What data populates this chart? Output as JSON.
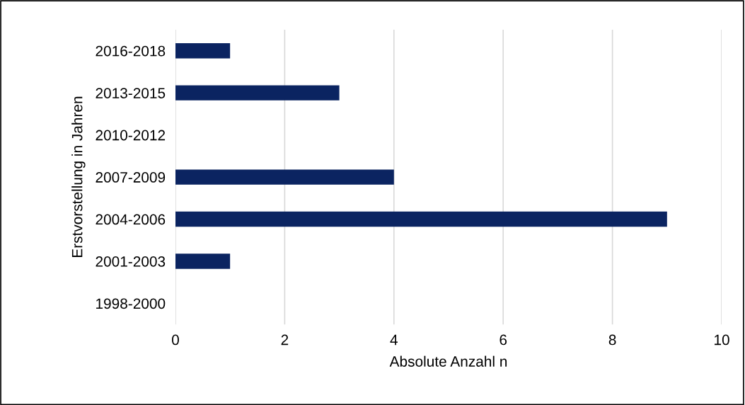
{
  "chart_data": {
    "type": "bar",
    "orientation": "horizontal",
    "categories": [
      "2016-2018",
      "2013-2015",
      "2010-2012",
      "2007-2009",
      "2004-2006",
      "2001-2003",
      "1998-2000"
    ],
    "values": [
      1,
      3,
      0,
      4,
      9,
      1,
      0
    ],
    "color": "#0b2461",
    "xlim": [
      0,
      10
    ],
    "xticks": [
      0,
      2,
      4,
      6,
      8,
      10
    ],
    "xlabel": "Absolute Anzahl n",
    "ylabel": "Erstvorstellung in Jahren",
    "grid": "x"
  }
}
